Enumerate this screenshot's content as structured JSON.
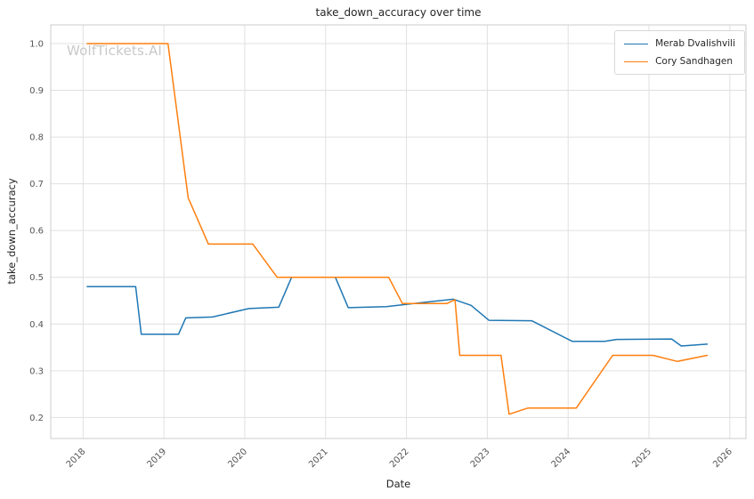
{
  "figure": {
    "background": "#ffffff"
  },
  "watermark": {
    "text": "WolfTickets.AI",
    "color": "#c9c9c9"
  },
  "chart_data": {
    "type": "line",
    "title": "take_down_accuracy over time",
    "xlabel": "Date",
    "ylabel": "take_down_accuracy",
    "grid": true,
    "legend_position": "upper right",
    "xlim": [
      2017.6,
      2026.2
    ],
    "ylim": [
      0.155,
      1.04
    ],
    "x_ticks": [
      2018,
      2019,
      2020,
      2021,
      2022,
      2023,
      2024,
      2025,
      2026
    ],
    "x_tick_labels": [
      "2018",
      "2019",
      "2020",
      "2021",
      "2022",
      "2023",
      "2024",
      "2025",
      "2026"
    ],
    "y_ticks": [
      0.2,
      0.3,
      0.4,
      0.5,
      0.6,
      0.7,
      0.8,
      0.9,
      1.0
    ],
    "y_tick_labels": [
      "0.2",
      "0.3",
      "0.4",
      "0.5",
      "0.6",
      "0.7",
      "0.8",
      "0.9",
      "1.0"
    ],
    "series": [
      {
        "name": "Merab Dvalishvili",
        "color": "#1f77b4",
        "points": [
          [
            2018.05,
            0.48
          ],
          [
            2018.65,
            0.48
          ],
          [
            2018.72,
            0.378
          ],
          [
            2019.18,
            0.378
          ],
          [
            2019.27,
            0.413
          ],
          [
            2019.6,
            0.415
          ],
          [
            2020.05,
            0.433
          ],
          [
            2020.42,
            0.436
          ],
          [
            2020.58,
            0.5
          ],
          [
            2021.12,
            0.5
          ],
          [
            2021.28,
            0.435
          ],
          [
            2021.75,
            0.437
          ],
          [
            2022.15,
            0.445
          ],
          [
            2022.58,
            0.453
          ],
          [
            2022.8,
            0.44
          ],
          [
            2023.02,
            0.408
          ],
          [
            2023.55,
            0.407
          ],
          [
            2024.05,
            0.363
          ],
          [
            2024.45,
            0.363
          ],
          [
            2024.6,
            0.367
          ],
          [
            2025.28,
            0.368
          ],
          [
            2025.4,
            0.353
          ],
          [
            2025.72,
            0.357
          ]
        ]
      },
      {
        "name": "Cory Sandhagen",
        "color": "#ff7f0e",
        "points": [
          [
            2018.05,
            1.0
          ],
          [
            2019.05,
            1.0
          ],
          [
            2019.3,
            0.67
          ],
          [
            2019.55,
            0.571
          ],
          [
            2020.1,
            0.571
          ],
          [
            2020.4,
            0.5
          ],
          [
            2021.78,
            0.5
          ],
          [
            2021.95,
            0.444
          ],
          [
            2022.5,
            0.444
          ],
          [
            2022.6,
            0.452
          ],
          [
            2022.66,
            0.333
          ],
          [
            2023.17,
            0.333
          ],
          [
            2023.27,
            0.207
          ],
          [
            2023.5,
            0.22
          ],
          [
            2024.1,
            0.22
          ],
          [
            2024.55,
            0.333
          ],
          [
            2025.05,
            0.333
          ],
          [
            2025.35,
            0.32
          ],
          [
            2025.72,
            0.333
          ]
        ]
      }
    ]
  }
}
